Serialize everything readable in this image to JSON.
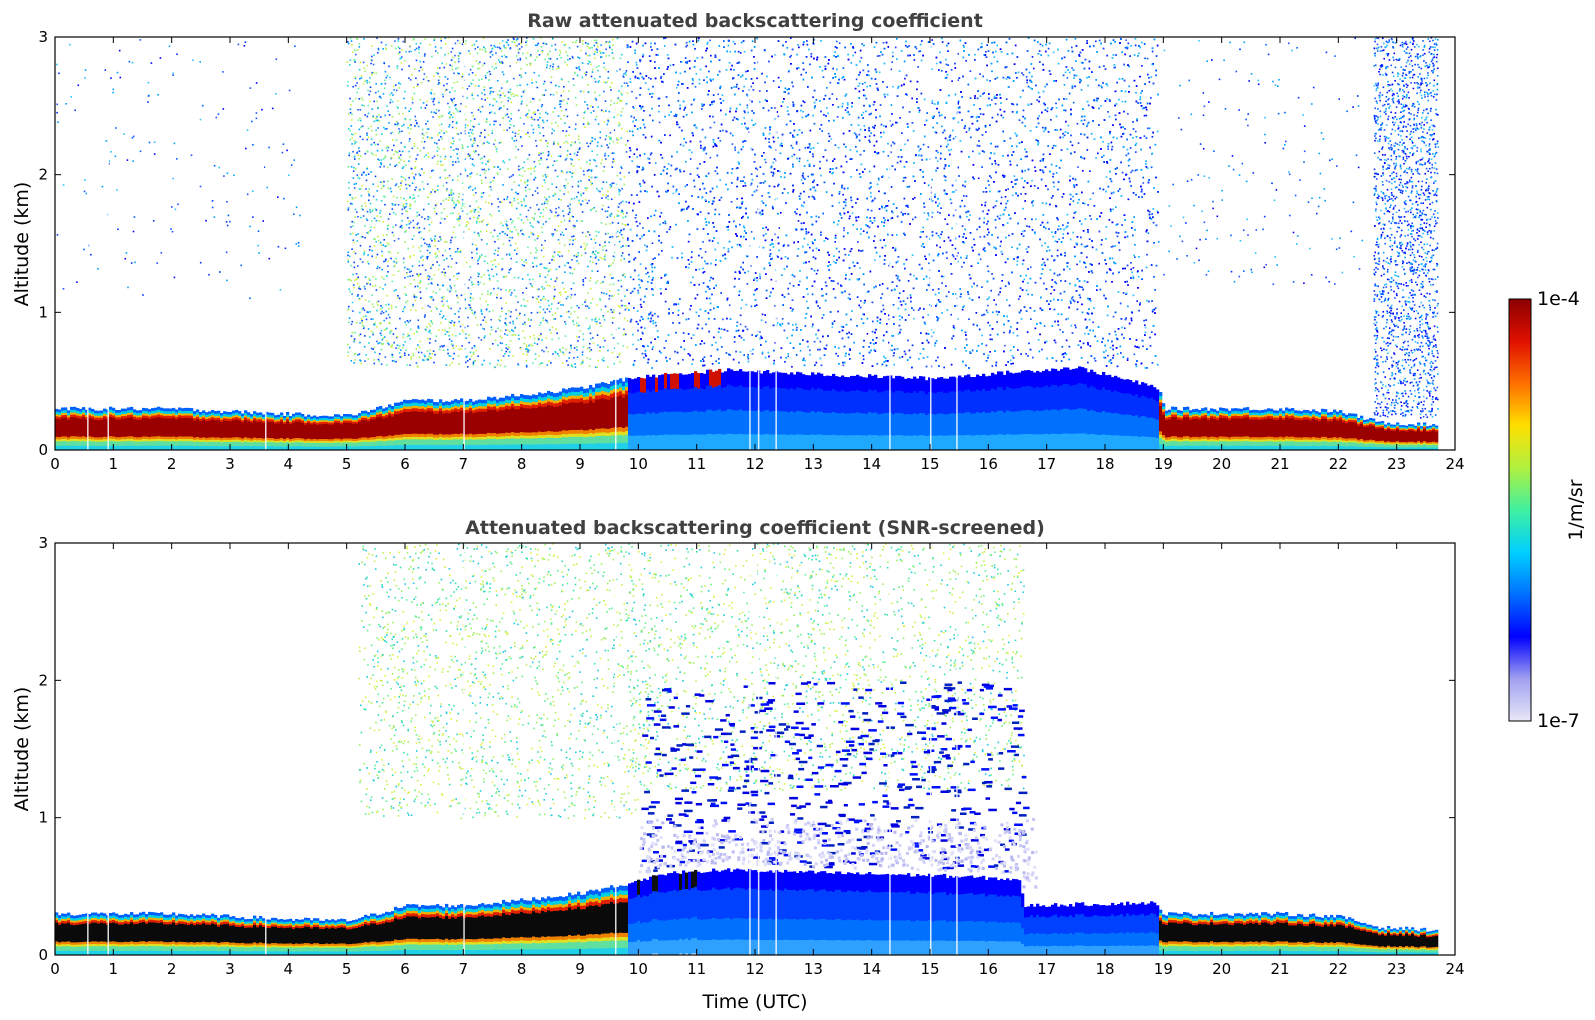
{
  "chart_data": [
    {
      "type": "heatmap",
      "title": "Raw attenuated backscattering coefficient",
      "xlabel": "",
      "ylabel": "Altitude (km)",
      "xlim": [
        0,
        24
      ],
      "ylim": [
        0,
        3
      ],
      "x_ticks": [
        "0",
        "1",
        "2",
        "3",
        "4",
        "5",
        "6",
        "7",
        "8",
        "9",
        "10",
        "11",
        "12",
        "13",
        "14",
        "15",
        "16",
        "17",
        "18",
        "19",
        "20",
        "21",
        "22",
        "23",
        "24"
      ],
      "y_ticks": [
        "0",
        "1",
        "2",
        "3"
      ],
      "data_end_hour": 23.7,
      "layer_top_km": [
        {
          "t": 0,
          "h": 0.3
        },
        {
          "t": 2,
          "h": 0.3
        },
        {
          "t": 4,
          "h": 0.26
        },
        {
          "t": 5,
          "h": 0.25
        },
        {
          "t": 5.5,
          "h": 0.3
        },
        {
          "t": 6,
          "h": 0.36
        },
        {
          "t": 7,
          "h": 0.36
        },
        {
          "t": 8,
          "h": 0.4
        },
        {
          "t": 9,
          "h": 0.45
        },
        {
          "t": 9.8,
          "h": 0.52
        },
        {
          "t": 10.5,
          "h": 0.55
        },
        {
          "t": 11.5,
          "h": 0.58
        },
        {
          "t": 13,
          "h": 0.55
        },
        {
          "t": 15,
          "h": 0.52
        },
        {
          "t": 17.5,
          "h": 0.6
        },
        {
          "t": 18.9,
          "h": 0.45
        },
        {
          "t": 19,
          "h": 0.3
        },
        {
          "t": 21,
          "h": 0.3
        },
        {
          "t": 22,
          "h": 0.28
        },
        {
          "t": 22.7,
          "h": 0.2
        },
        {
          "t": 23.7,
          "h": 0.18
        }
      ],
      "noise_regions": [
        {
          "t0": 0,
          "t1": 4.2,
          "h0": 1.1,
          "h1": 3,
          "color_class": "blue",
          "density": 0.015
        },
        {
          "t0": 5,
          "t1": 9.8,
          "h0": 0.6,
          "h1": 3,
          "color_class": "mixed",
          "density": 0.22
        },
        {
          "t0": 9.8,
          "t1": 18.9,
          "h0": 0.6,
          "h1": 3,
          "color_class": "blue",
          "density": 0.32
        },
        {
          "t0": 18.9,
          "t1": 22.4,
          "h0": 1.2,
          "h1": 3,
          "color_class": "blue",
          "density": 0.02
        },
        {
          "t0": 22.6,
          "t1": 23.7,
          "h0": 0.2,
          "h1": 3,
          "color_class": "blue",
          "density": 0.45
        }
      ],
      "colorbar": {
        "min": "1e-7",
        "max": "1e-4",
        "label": "1/m/sr",
        "scale": "log"
      }
    },
    {
      "type": "heatmap",
      "title": "Attenuated backscattering coefficient (SNR-screened)",
      "xlabel": "Time (UTC)",
      "ylabel": "Altitude (km)",
      "xlim": [
        0,
        24
      ],
      "ylim": [
        0,
        3
      ],
      "x_ticks": [
        "0",
        "1",
        "2",
        "3",
        "4",
        "5",
        "6",
        "7",
        "8",
        "9",
        "10",
        "11",
        "12",
        "13",
        "14",
        "15",
        "16",
        "17",
        "18",
        "19",
        "20",
        "21",
        "22",
        "23",
        "24"
      ],
      "y_ticks": [
        "0",
        "1",
        "2",
        "3"
      ],
      "data_end_hour": 23.7,
      "layer_top_km": [
        {
          "t": 0,
          "h": 0.3
        },
        {
          "t": 2,
          "h": 0.3
        },
        {
          "t": 4,
          "h": 0.26
        },
        {
          "t": 5,
          "h": 0.25
        },
        {
          "t": 5.5,
          "h": 0.3
        },
        {
          "t": 6,
          "h": 0.36
        },
        {
          "t": 7,
          "h": 0.36
        },
        {
          "t": 8,
          "h": 0.4
        },
        {
          "t": 9,
          "h": 0.45
        },
        {
          "t": 9.8,
          "h": 0.52
        },
        {
          "t": 10.5,
          "h": 0.6
        },
        {
          "t": 11.5,
          "h": 0.62
        },
        {
          "t": 13,
          "h": 0.6
        },
        {
          "t": 15,
          "h": 0.58
        },
        {
          "t": 16.5,
          "h": 0.55
        },
        {
          "t": 16.6,
          "h": 0.36
        },
        {
          "t": 18.8,
          "h": 0.38
        },
        {
          "t": 19,
          "h": 0.3
        },
        {
          "t": 21,
          "h": 0.3
        },
        {
          "t": 22,
          "h": 0.28
        },
        {
          "t": 22.7,
          "h": 0.2
        },
        {
          "t": 23.7,
          "h": 0.18
        }
      ],
      "noise_regions": [
        {
          "t0": 5.2,
          "t1": 10,
          "h0": 1.0,
          "h1": 3,
          "color_class": "green",
          "density": 0.13
        },
        {
          "t0": 10,
          "t1": 16.6,
          "h0": 1.2,
          "h1": 3,
          "color_class": "green",
          "density": 0.12
        },
        {
          "t0": 10,
          "t1": 16.6,
          "h0": 0.6,
          "h1": 2.0,
          "color_class": "darkblue",
          "density": 0.06
        },
        {
          "t0": 10,
          "t1": 16.8,
          "h0": 0.5,
          "h1": 1.0,
          "color_class": "faint",
          "density": 0.35
        }
      ],
      "colorbar": {
        "min": "1e-7",
        "max": "1e-4",
        "label": "1/m/sr",
        "scale": "log"
      }
    }
  ],
  "colorbar": {
    "max_label": "1e-4",
    "min_label": "1e-7",
    "unit_label": "1/m/sr",
    "stops": [
      "#e8e8f8",
      "#a0a0f0",
      "#0000ff",
      "#0070ff",
      "#00d0ff",
      "#40f0a0",
      "#b0f040",
      "#ffe000",
      "#ff7000",
      "#e01000",
      "#8b0000"
    ]
  }
}
